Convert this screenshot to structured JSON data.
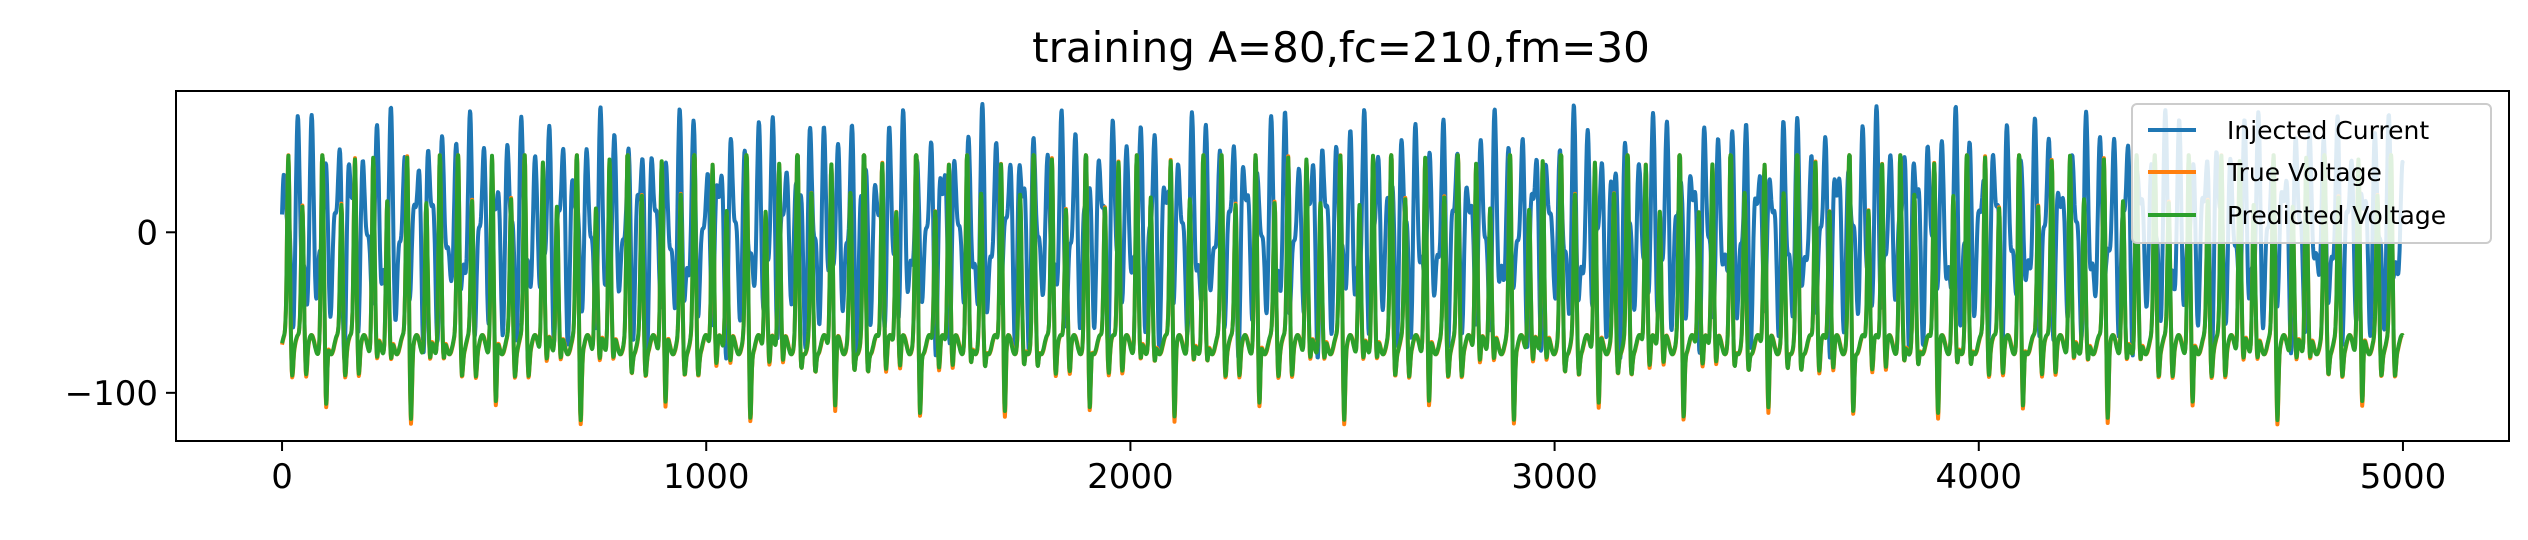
{
  "chart_data": {
    "type": "line",
    "title": "training A=80,fc=210,fm=30",
    "xlabel": "",
    "ylabel": "",
    "xlim": [
      -250,
      5250
    ],
    "ylim": [
      -130,
      88
    ],
    "xticks": [
      0,
      1000,
      2000,
      3000,
      4000,
      5000
    ],
    "yticks": [
      0,
      -100
    ],
    "xtick_labels": [
      "0",
      "1000",
      "2000",
      "3000",
      "4000",
      "5000"
    ],
    "ytick_labels": [
      "0",
      "−100"
    ],
    "grid": false,
    "legend_position": "top-right",
    "series": [
      {
        "name": "Injected Current",
        "color": "#1f77b4",
        "model": {
          "amplitude": 80,
          "fc": 210,
          "fm": 30,
          "num_points": 5001,
          "x_start": 0,
          "x_end": 5000
        }
      },
      {
        "name": "True Voltage",
        "color": "#ff7f0e",
        "model": {
          "rest": -70,
          "range": [
            -120,
            48
          ],
          "fc": 210,
          "fm": 30,
          "num_points": 5001,
          "x_start": 0,
          "x_end": 5000
        }
      },
      {
        "name": "Predicted Voltage",
        "color": "#2ca02c",
        "model": {
          "rest": -70,
          "range": [
            -117,
            48
          ],
          "fc": 210,
          "fm": 30,
          "num_points": 5001,
          "x_start": 0,
          "x_end": 5000
        }
      }
    ]
  }
}
